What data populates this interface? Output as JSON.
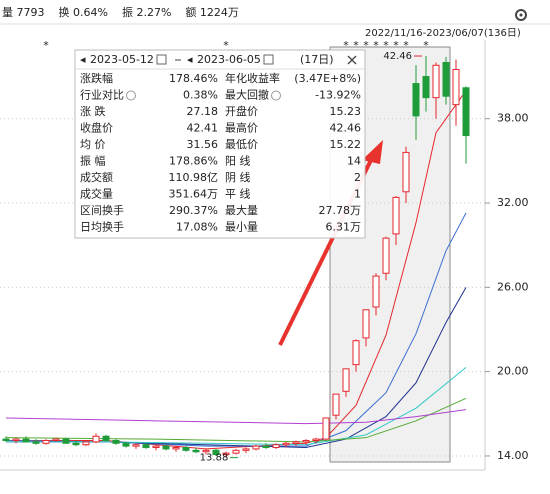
{
  "header": {
    "items": [
      "量 7793",
      "换 0.64%",
      "振 2.27%",
      "额 1224万"
    ],
    "range": "2022/11/16-2023/06/07(136日)"
  },
  "chart_data": {
    "type": "candlestick",
    "open": [
      15.2,
      15.1,
      15.2,
      15.0,
      14.9,
      15.1,
      15.2,
      14.9,
      14.8,
      15.0,
      15.4,
      15.1,
      14.9,
      14.7,
      14.8,
      14.6,
      14.7,
      14.5,
      14.6,
      14.4,
      14.3,
      14.4,
      14.1,
      14.2,
      14.4,
      14.5,
      14.7,
      14.6,
      14.8,
      14.9,
      15.0,
      15.1,
      15.2,
      16.9,
      18.6,
      20.5,
      22.4,
      24.6,
      27.0,
      29.8,
      32.8,
      40.5,
      41.0,
      39.5,
      42.0,
      39.0,
      40.2
    ],
    "high": [
      15.4,
      15.3,
      15.4,
      15.2,
      15.2,
      15.3,
      15.3,
      15.1,
      15.0,
      15.6,
      15.5,
      15.2,
      15.0,
      14.9,
      14.9,
      14.8,
      14.8,
      14.7,
      14.7,
      14.6,
      14.5,
      14.5,
      14.3,
      14.5,
      14.6,
      14.8,
      14.9,
      14.9,
      15.0,
      15.1,
      15.2,
      15.3,
      16.7,
      18.4,
      20.2,
      22.3,
      24.4,
      27.0,
      29.6,
      32.5,
      36.0,
      41.8,
      42.46,
      42.0,
      42.4,
      42.2,
      40.3
    ],
    "low": [
      15.0,
      14.9,
      15.0,
      14.8,
      14.8,
      15.0,
      14.9,
      14.7,
      14.7,
      14.9,
      15.0,
      14.8,
      14.6,
      14.5,
      14.5,
      14.4,
      14.4,
      14.3,
      14.3,
      14.2,
      14.1,
      14.0,
      13.88,
      14.1,
      14.2,
      14.4,
      14.5,
      14.5,
      14.6,
      14.7,
      14.8,
      14.9,
      15.1,
      16.6,
      18.2,
      20.0,
      21.8,
      24.0,
      26.5,
      29.0,
      32.0,
      36.5,
      38.5,
      38.0,
      39.0,
      37.5,
      34.8
    ],
    "close": [
      15.1,
      15.2,
      15.0,
      14.9,
      15.1,
      15.2,
      14.9,
      14.8,
      15.0,
      15.4,
      15.1,
      14.9,
      14.7,
      14.8,
      14.6,
      14.7,
      14.5,
      14.6,
      14.4,
      14.3,
      14.4,
      14.1,
      14.2,
      14.4,
      14.5,
      14.7,
      14.6,
      14.8,
      14.9,
      15.0,
      15.1,
      15.2,
      16.7,
      18.4,
      20.2,
      22.2,
      24.4,
      26.8,
      29.5,
      32.4,
      35.6,
      38.2,
      39.5,
      41.8,
      39.6,
      41.5,
      36.8
    ],
    "up_color": "#e5262d",
    "down_color": "#1f9c3a",
    "ma_lines": [
      {
        "color": "#e5262d",
        "x": [
          0,
          10,
          20,
          30,
          32,
          35,
          38,
          41,
          43,
          46
        ],
        "values": [
          15.1,
          15.1,
          14.5,
          14.9,
          15.3,
          17.6,
          22.6,
          30.6,
          37.0,
          40.0
        ]
      },
      {
        "color": "#3b6fd1",
        "x": [
          0,
          10,
          20,
          30,
          34,
          38,
          41,
          44,
          46
        ],
        "values": [
          15.1,
          15.0,
          14.7,
          14.7,
          15.8,
          18.5,
          22.7,
          28.6,
          31.3
        ]
      },
      {
        "color": "#1b2f8f",
        "x": [
          0,
          10,
          20,
          30,
          34,
          38,
          41,
          44,
          46
        ],
        "values": [
          15.0,
          15.0,
          14.8,
          14.6,
          15.2,
          16.8,
          19.2,
          23.5,
          26.0
        ]
      },
      {
        "color": "#33c7c7",
        "x": [
          0,
          10,
          20,
          30,
          36,
          41,
          46
        ],
        "values": [
          15.0,
          15.0,
          14.9,
          14.8,
          15.5,
          17.4,
          20.3
        ]
      },
      {
        "color": "#55aa33",
        "x": [
          0,
          15,
          30,
          36,
          41,
          46
        ],
        "values": [
          15.3,
          15.2,
          15.0,
          15.3,
          16.5,
          18.1
        ]
      },
      {
        "color": "#b040d0",
        "x": [
          0,
          15,
          30,
          36,
          41,
          46
        ],
        "values": [
          16.7,
          16.5,
          16.3,
          16.4,
          16.8,
          17.3
        ]
      }
    ],
    "ylim": [
      13,
      43.6
    ],
    "yticks": [
      {
        "value": 14,
        "label": "14.00"
      },
      {
        "value": 20,
        "label": "20.00"
      },
      {
        "value": 26,
        "label": "26.00"
      },
      {
        "value": 32,
        "label": "32.00"
      },
      {
        "value": 38,
        "label": "38.00"
      }
    ],
    "grid": true,
    "annotations": [
      {
        "text": "13.88",
        "index": 22
      },
      {
        "text": "42.46",
        "index": 42
      }
    ],
    "markers": [
      {
        "index": 4,
        "label": "*"
      },
      {
        "index": 22,
        "label": "*"
      },
      {
        "index": 34,
        "label": "*"
      },
      {
        "index": 35,
        "label": "*"
      },
      {
        "index": 36,
        "label": "*"
      },
      {
        "index": 37,
        "label": "*"
      },
      {
        "index": 38,
        "label": "*"
      },
      {
        "index": 39,
        "label": "*"
      },
      {
        "index": 40,
        "label": "*"
      },
      {
        "index": 42,
        "label": "*"
      }
    ]
  },
  "stats_panel": {
    "start": "2023-05-12",
    "end": "2023-06-05",
    "days": "(17日)",
    "rows": [
      [
        {
          "label": "涨跌幅",
          "value": "178.46%",
          "color": "#e5262d"
        },
        {
          "label": "年化收益率",
          "value": "(3.47E+8%)",
          "color": "#e5262d"
        }
      ],
      [
        {
          "label": "行业对比",
          "value": "0.38%",
          "color": "#e5262d"
        },
        {
          "label": "最大回撤",
          "value": "-13.92%",
          "color": "#1f9c3a"
        }
      ],
      [
        {
          "label": "涨 跌",
          "value": "27.18",
          "color": "#e5262d"
        },
        {
          "label": "开盘价",
          "value": "15.23",
          "color": "#e5262d"
        }
      ],
      [
        {
          "label": "收盘价",
          "value": "42.41",
          "color": "#e5262d"
        },
        {
          "label": "最高价",
          "value": "42.46",
          "color": "#e5262d"
        }
      ],
      [
        {
          "label": "均 价",
          "value": "31.56",
          "color": "#e5262d"
        },
        {
          "label": "最低价",
          "value": "15.22",
          "color": "#e5262d"
        }
      ],
      [
        {
          "label": "振 幅",
          "value": "178.86%",
          "color": "#e5262d"
        },
        {
          "label": "阳 线",
          "value": "14",
          "color": "#222222"
        }
      ],
      [
        {
          "label": "成交额",
          "value": "110.98亿",
          "color": "#222222"
        },
        {
          "label": "阴 线",
          "value": "2",
          "color": "#222222"
        }
      ],
      [
        {
          "label": "成交量",
          "value": "351.64万",
          "color": "#222222"
        },
        {
          "label": "平 线",
          "value": "1",
          "color": "#222222"
        }
      ],
      [
        {
          "label": "区间换手",
          "value": "290.37%",
          "color": "#222222"
        },
        {
          "label": "最大量",
          "value": "27.78万",
          "color": "#222222"
        }
      ],
      [
        {
          "label": "日均换手",
          "value": "17.08%",
          "color": "#222222"
        },
        {
          "label": "最小量",
          "value": "6.31万",
          "color": "#222222"
        }
      ]
    ]
  }
}
